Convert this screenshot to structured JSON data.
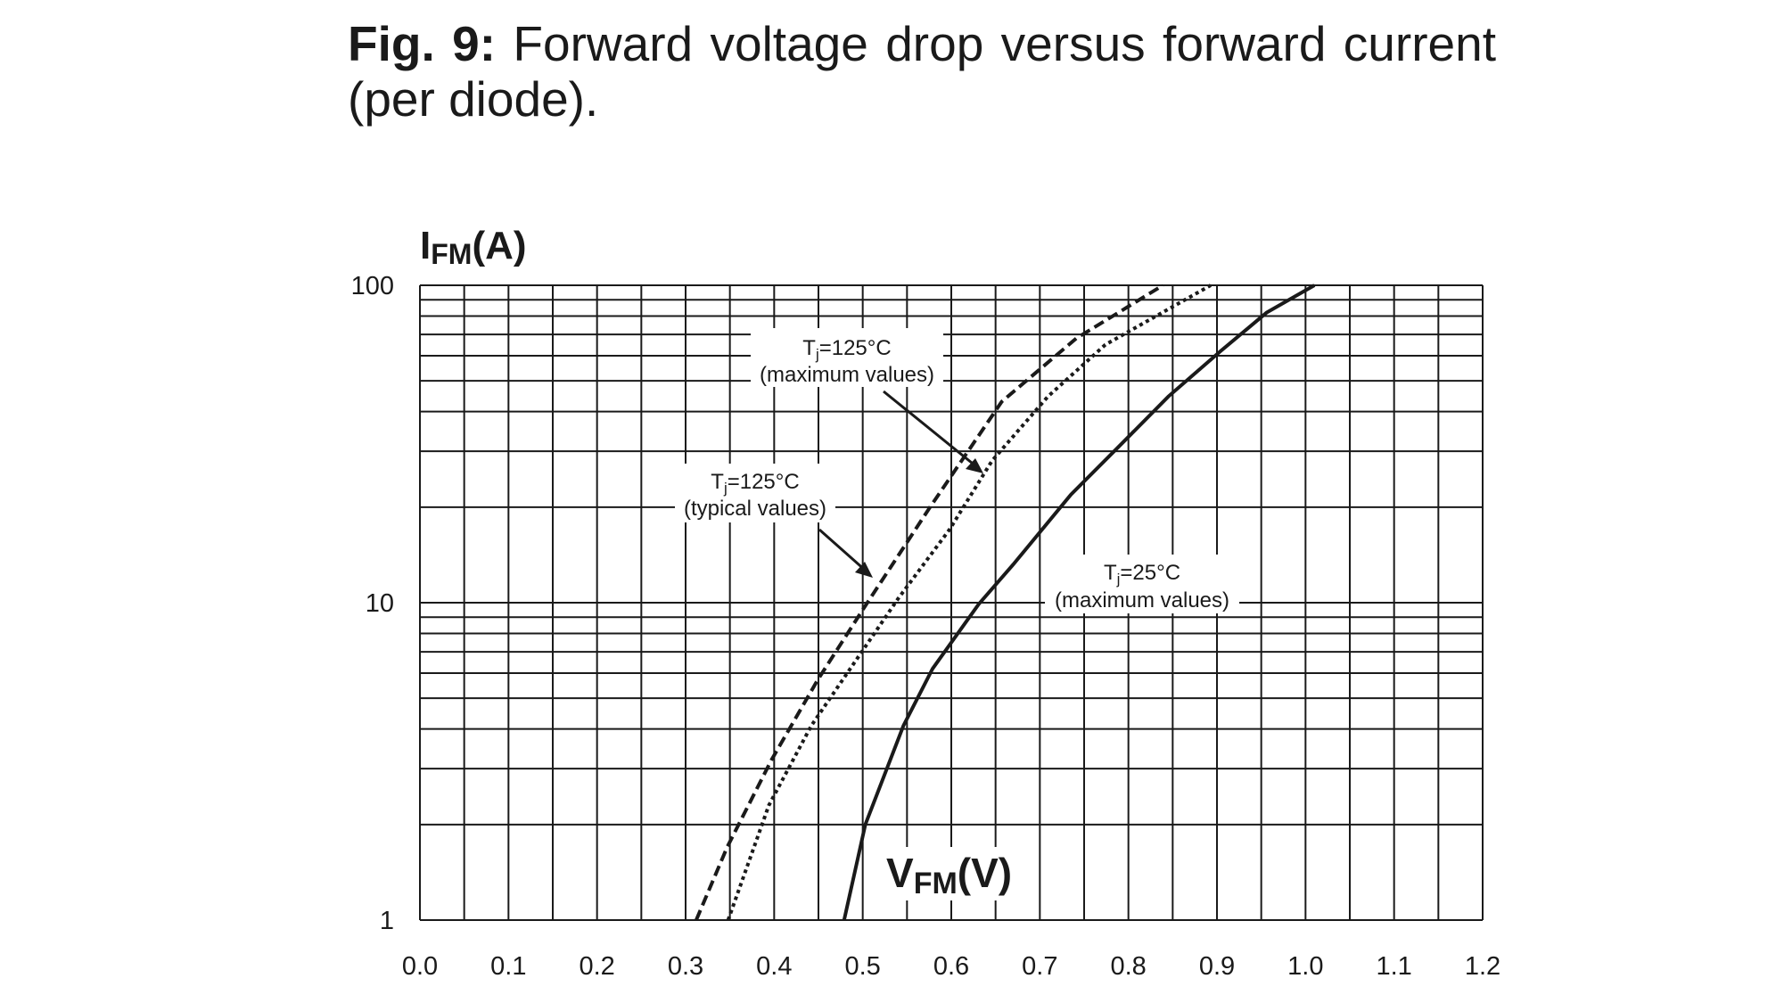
{
  "title": {
    "label": "Fig. 9:",
    "text": "Forward voltage drop versus forward current (per diode)."
  },
  "chart_data": {
    "type": "line",
    "title": "Fig. 9: Forward voltage drop versus forward current (per diode).",
    "xlabel": {
      "main": "V",
      "sub": "FM",
      "unit": "(V)"
    },
    "ylabel": {
      "main": "I",
      "sub": "FM",
      "unit": "(A)"
    },
    "xlim": [
      0.0,
      1.2
    ],
    "ylim": [
      1,
      100
    ],
    "yscale": "log",
    "grid": true,
    "x_ticks": [
      "0.0",
      "0.1",
      "0.2",
      "0.3",
      "0.4",
      "0.5",
      "0.6",
      "0.7",
      "0.8",
      "0.9",
      "1.0",
      "1.1",
      "1.2"
    ],
    "y_ticks": [
      {
        "value": 100,
        "label": "100"
      },
      {
        "value": 10,
        "label": "10"
      },
      {
        "value": 1,
        "label": "1"
      }
    ],
    "series": [
      {
        "name": "Tj=125°C (typical values)",
        "style": "dashed",
        "x": [
          0.312,
          0.347,
          0.397,
          0.449,
          0.5,
          0.576,
          0.657,
          0.741,
          0.839
        ],
        "y": [
          1,
          1.7,
          3.2,
          5.7,
          9.5,
          20,
          43,
          68,
          100
        ]
      },
      {
        "name": "Tj=125°C (maximum values)",
        "style": "dotted",
        "x": [
          0.348,
          0.394,
          0.442,
          0.54,
          0.598,
          0.646,
          0.709,
          0.774,
          0.893
        ],
        "y": [
          1,
          2.3,
          4.1,
          10.3,
          17,
          28,
          44.6,
          65,
          100
        ]
      },
      {
        "name": "Tj=25°C (maximum values)",
        "style": "solid",
        "x": [
          0.479,
          0.503,
          0.546,
          0.579,
          0.631,
          0.67,
          0.735,
          0.793,
          0.845,
          0.904,
          0.956,
          1.01
        ],
        "y": [
          1,
          2.0,
          4.1,
          6.2,
          9.9,
          13.2,
          21.9,
          31.8,
          44.6,
          62,
          82,
          100
        ]
      }
    ],
    "annotations": [
      {
        "symbol": "T",
        "sub": "j",
        "value": "=125°C",
        "note": "(maximum values)"
      },
      {
        "symbol": "T",
        "sub": "j",
        "value": "=125°C",
        "note": "(typical values)"
      },
      {
        "symbol": "T",
        "sub": "j",
        "value": "=25°C",
        "note": "(maximum values)"
      }
    ]
  }
}
